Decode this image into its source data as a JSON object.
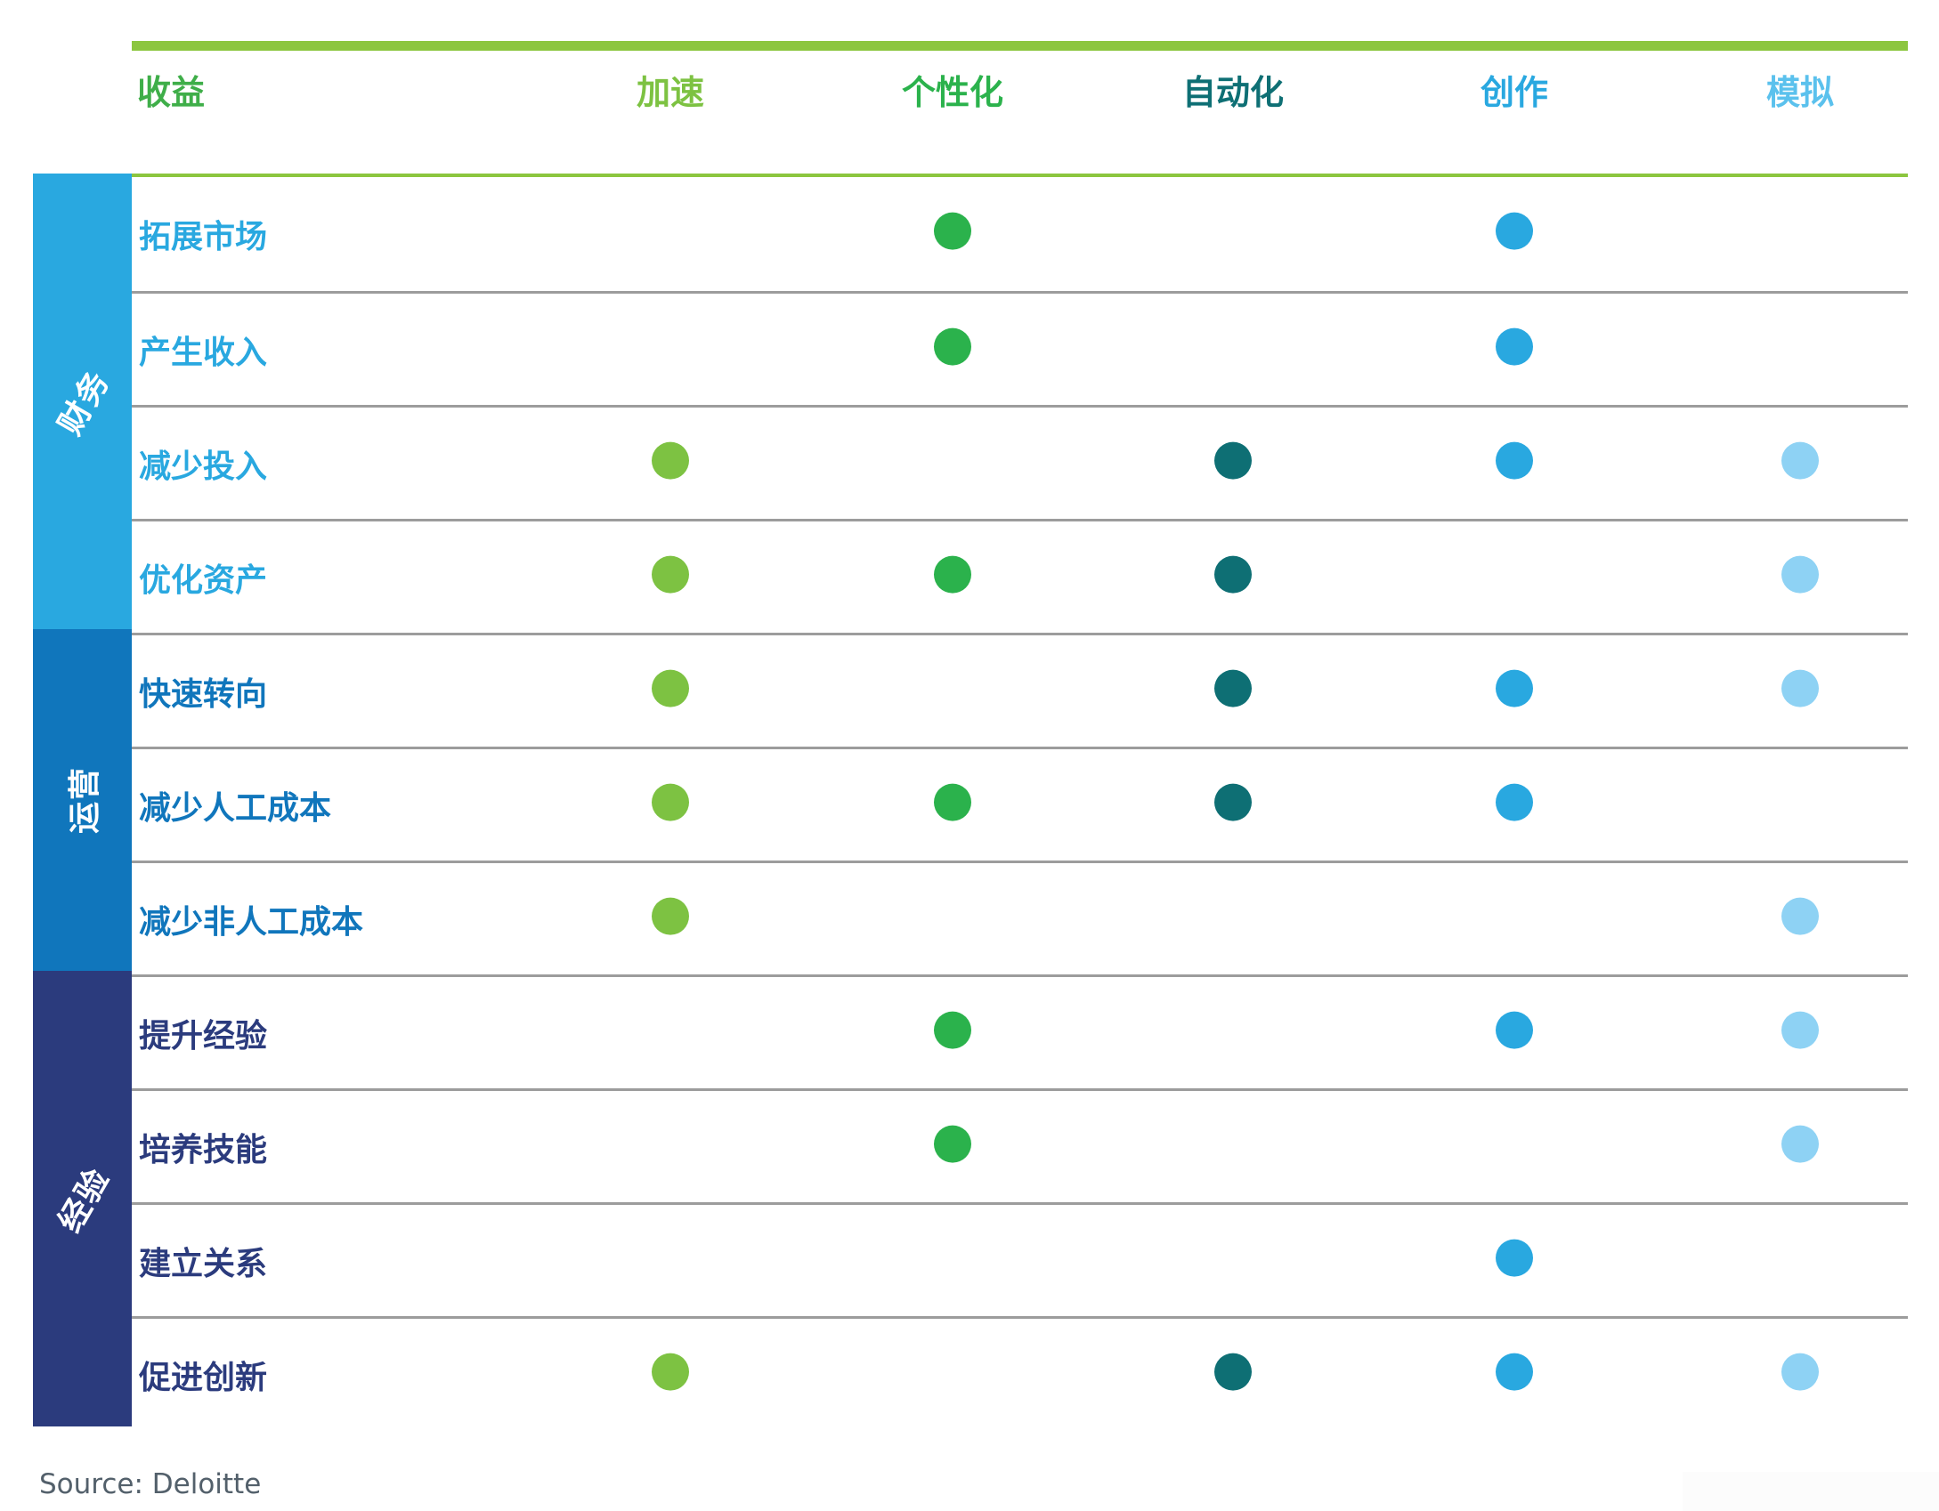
{
  "page": {
    "source_note": "Source: Deloitte"
  },
  "table": {
    "corner_label": "收益",
    "corner_label_color": "#3FAE49",
    "columns": [
      {
        "id": "accelerate",
        "label": "加速",
        "label_color": "#7DC242",
        "dot_color": "#7DC242"
      },
      {
        "id": "personalize",
        "label": "个性化",
        "label_color": "#2BB24C",
        "dot_color": "#2BB24C"
      },
      {
        "id": "automate",
        "label": "自动化",
        "label_color": "#0E6F74",
        "dot_color": "#0E6F74"
      },
      {
        "id": "create",
        "label": "创作",
        "label_color": "#29A8E0",
        "dot_color": "#29A8E0"
      },
      {
        "id": "simulate",
        "label": "模拟",
        "label_color": "#5BC1ED",
        "dot_color": "#8ED2F4"
      }
    ],
    "groups": [
      {
        "label": "财务",
        "bg_color": "#29A8E0",
        "row_label_color": "#29A8E0",
        "rows": [
          {
            "label": "拓展市场",
            "dots": [
              "personalize",
              "create"
            ]
          },
          {
            "label": "产生收入",
            "dots": [
              "personalize",
              "create"
            ]
          },
          {
            "label": "减少投入",
            "dots": [
              "accelerate",
              "automate",
              "create",
              "simulate"
            ]
          },
          {
            "label": "优化资产",
            "dots": [
              "accelerate",
              "personalize",
              "automate",
              "simulate"
            ]
          }
        ]
      },
      {
        "label": "运营",
        "bg_color": "#1076BC",
        "row_label_color": "#1076BC",
        "rows": [
          {
            "label": "快速转向",
            "dots": [
              "accelerate",
              "automate",
              "create",
              "simulate"
            ]
          },
          {
            "label": "减少人工成本",
            "dots": [
              "accelerate",
              "personalize",
              "automate",
              "create"
            ]
          },
          {
            "label": "减少非人工成本",
            "dots": [
              "accelerate",
              "simulate"
            ]
          }
        ]
      },
      {
        "label": "经验",
        "bg_color": "#2B3B7D",
        "row_label_color": "#2B3B7D",
        "rows": [
          {
            "label": "提升经验",
            "dots": [
              "personalize",
              "create",
              "simulate"
            ]
          },
          {
            "label": "培养技能",
            "dots": [
              "personalize",
              "simulate"
            ]
          },
          {
            "label": "建立关系",
            "dots": [
              "create"
            ]
          },
          {
            "label": "促进创新",
            "dots": [
              "accelerate",
              "automate",
              "create",
              "simulate"
            ]
          }
        ]
      }
    ]
  },
  "chart_data": {
    "type": "table",
    "title": "",
    "row_label_header": "收益",
    "columns": [
      "加速",
      "个性化",
      "自动化",
      "创作",
      "模拟"
    ],
    "column_colors": [
      "#7DC242",
      "#2BB24C",
      "#0E6F74",
      "#29A8E0",
      "#8ED2F4"
    ],
    "row_groups": [
      "财务",
      "运营",
      "经验"
    ],
    "rows": [
      {
        "group": "财务",
        "benefit": "拓展市场",
        "marks": [
          "个性化",
          "创作"
        ]
      },
      {
        "group": "财务",
        "benefit": "产生收入",
        "marks": [
          "个性化",
          "创作"
        ]
      },
      {
        "group": "财务",
        "benefit": "减少投入",
        "marks": [
          "加速",
          "自动化",
          "创作",
          "模拟"
        ]
      },
      {
        "group": "财务",
        "benefit": "优化资产",
        "marks": [
          "加速",
          "个性化",
          "自动化",
          "模拟"
        ]
      },
      {
        "group": "运营",
        "benefit": "快速转向",
        "marks": [
          "加速",
          "自动化",
          "创作",
          "模拟"
        ]
      },
      {
        "group": "运营",
        "benefit": "减少人工成本",
        "marks": [
          "加速",
          "个性化",
          "自动化",
          "创作"
        ]
      },
      {
        "group": "运营",
        "benefit": "减少非人工成本",
        "marks": [
          "加速",
          "模拟"
        ]
      },
      {
        "group": "经验",
        "benefit": "提升经验",
        "marks": [
          "个性化",
          "创作",
          "模拟"
        ]
      },
      {
        "group": "经验",
        "benefit": "培养技能",
        "marks": [
          "个性化",
          "模拟"
        ]
      },
      {
        "group": "经验",
        "benefit": "建立关系",
        "marks": [
          "创作"
        ]
      },
      {
        "group": "经验",
        "benefit": "促进创新",
        "marks": [
          "加速",
          "自动化",
          "创作",
          "模拟"
        ]
      }
    ],
    "legend_position": "none",
    "grid": "horizontal separators",
    "source": "Source: Deloitte"
  }
}
